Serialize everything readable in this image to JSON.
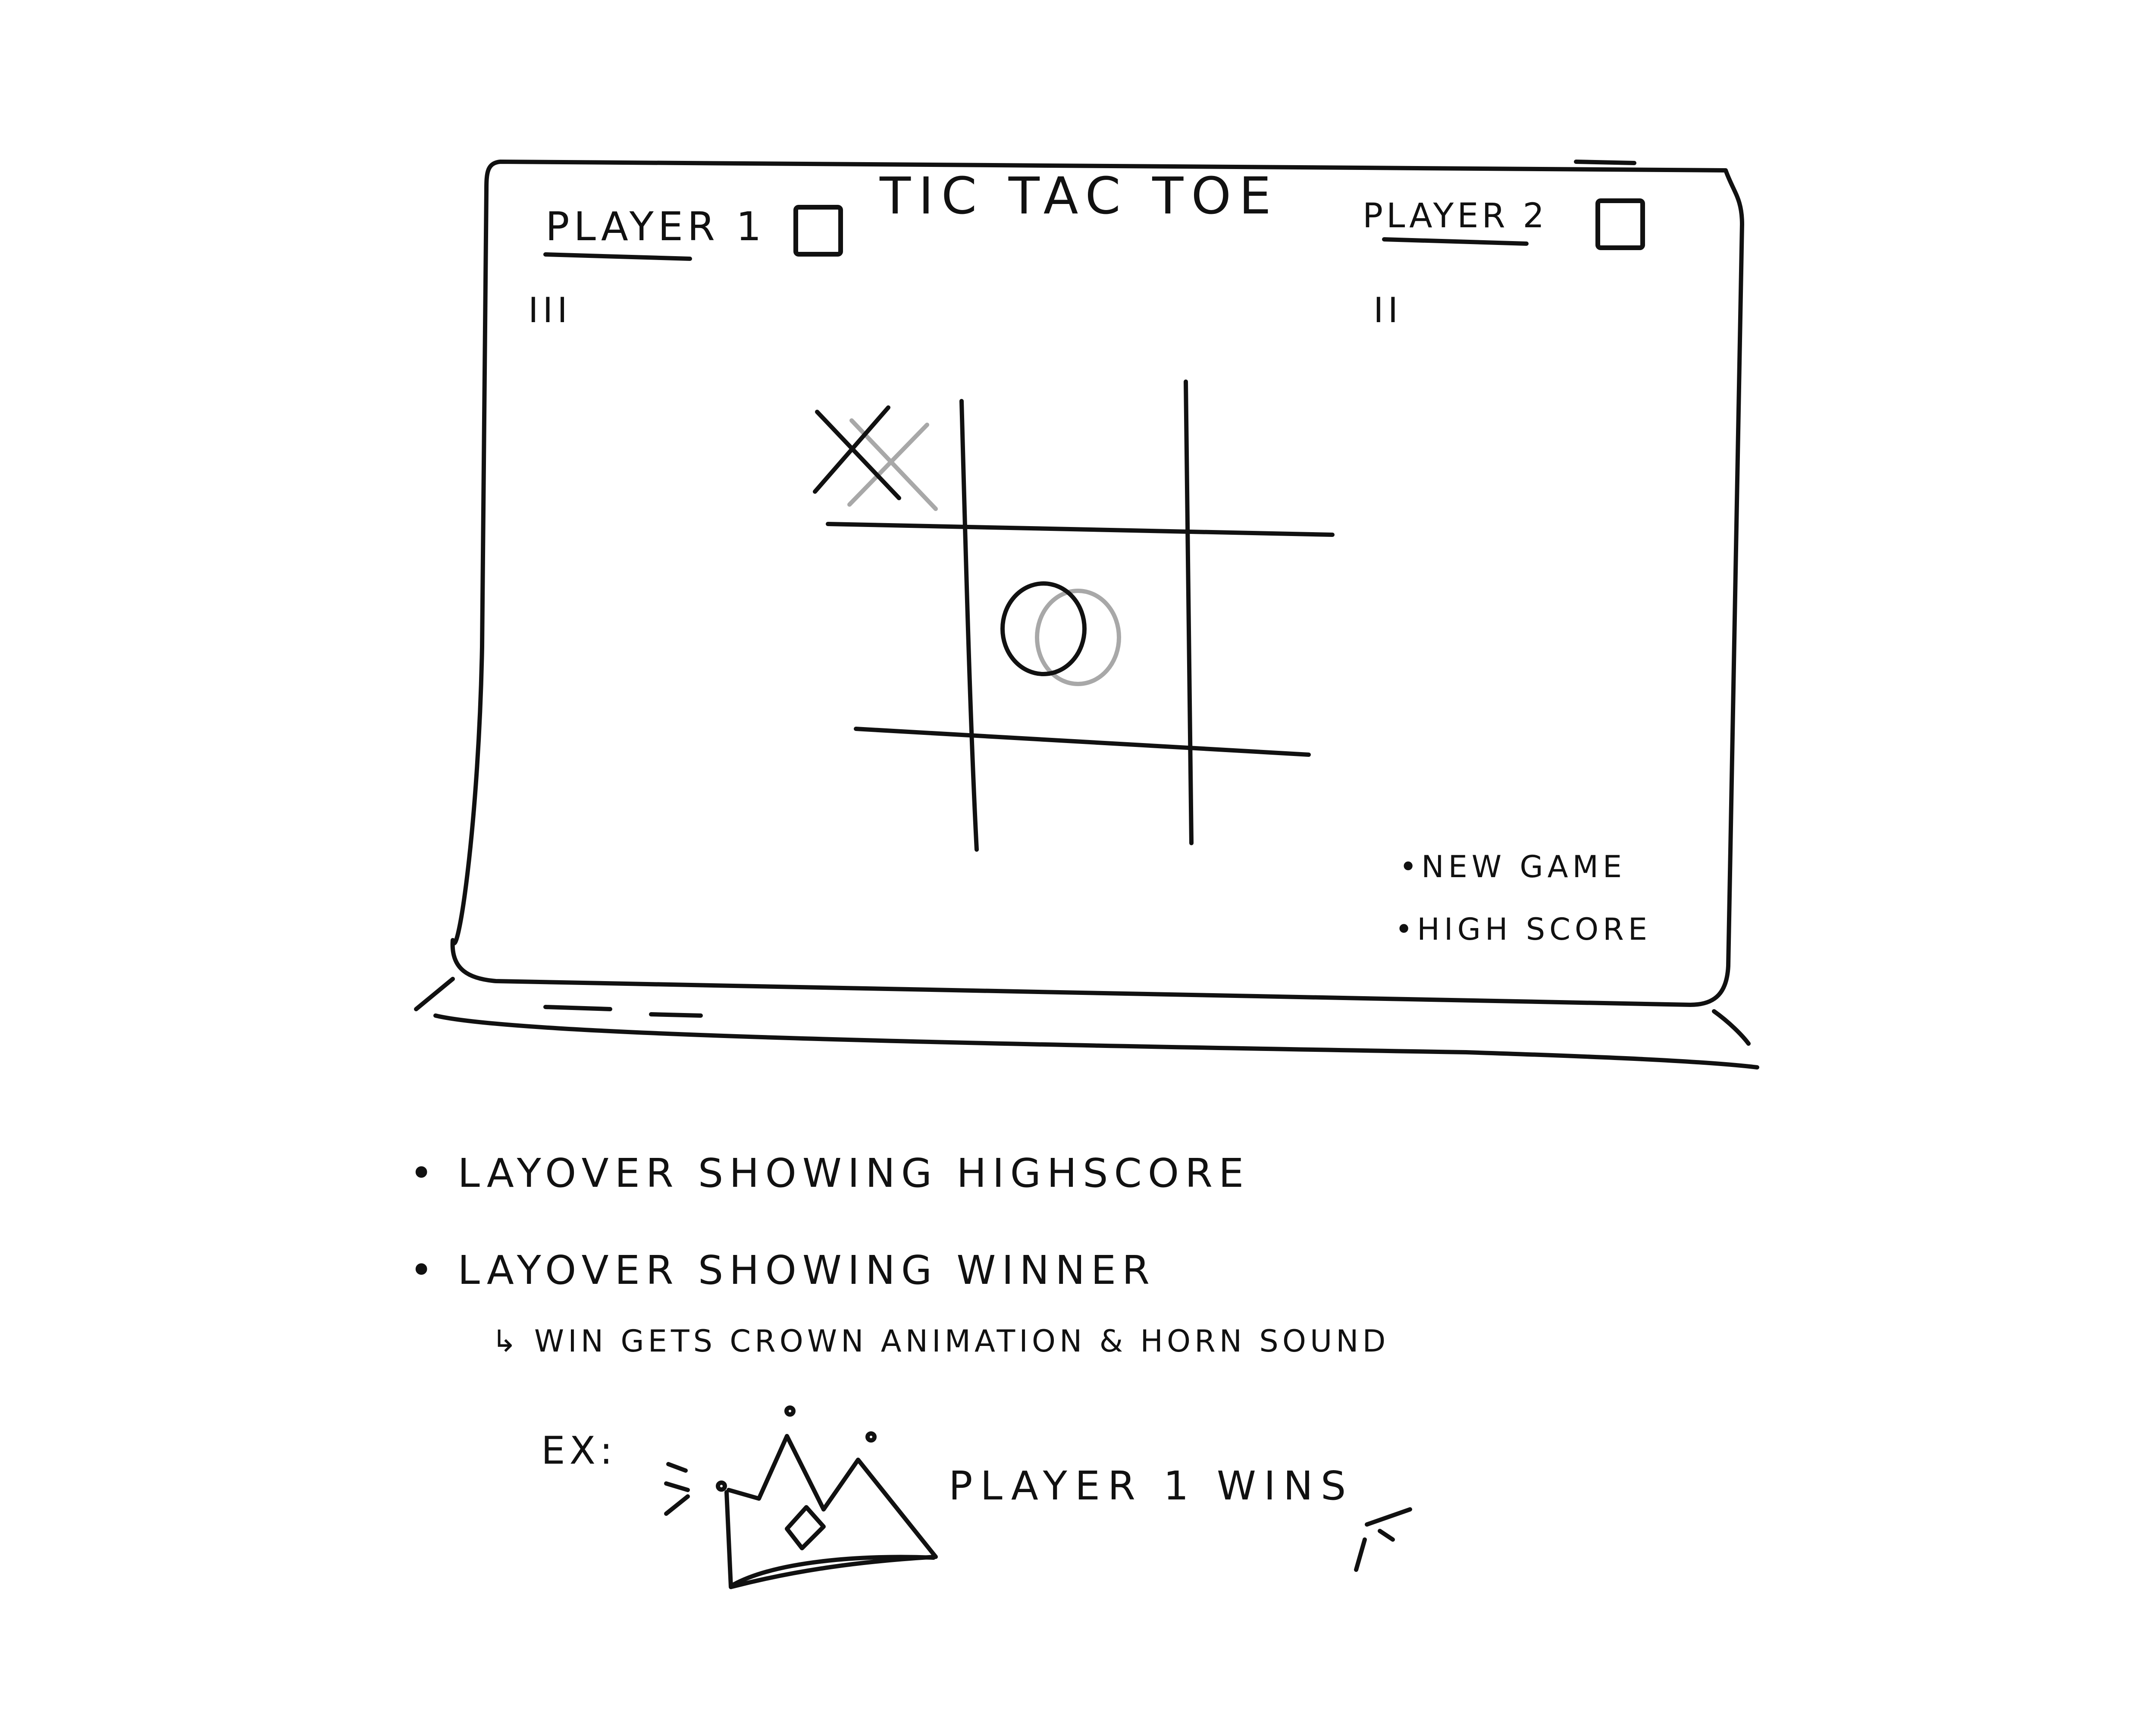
{
  "app": {
    "title": "TIC TAC TOE"
  },
  "players": [
    {
      "label": "PLAYER 1",
      "score": "III"
    },
    {
      "label": "PLAYER 2",
      "score": "II"
    }
  ],
  "menu": {
    "new_game": "•NEW GAME",
    "high_score": "•HIGH SCORE"
  },
  "board": {
    "cells": [
      "X",
      "",
      "",
      "",
      "O",
      "",
      "",
      "",
      ""
    ]
  },
  "notes": [
    "• LAYOVER SHOWING HIGHSCORE",
    "• LAYOVER SHOWING WINNER",
    "↳ WIN GETS CROWN ANIMATION & HORN SOUND"
  ],
  "example": {
    "label": "EX:",
    "message": "PLAYER 1 WINS"
  },
  "icons": {
    "crown": "crown-icon",
    "x_mark": "x-mark-icon",
    "o_mark": "o-mark-icon"
  },
  "colors": {
    "ink": "#111111",
    "ghost": "#a8a8a8",
    "background": "#ffffff"
  }
}
